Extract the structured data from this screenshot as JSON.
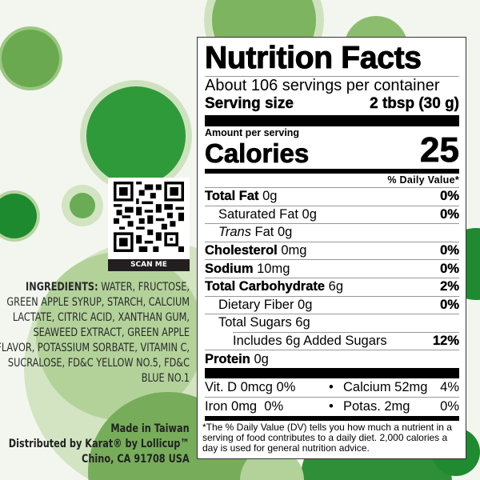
{
  "colors": {
    "background": "#f3f6ef",
    "dark_green": "#2a8f36",
    "mid_green": "#6fae55",
    "light_green": "#b9d6a3"
  },
  "qr": {
    "label": "SCAN ME"
  },
  "ingredients": {
    "label": "INGREDIENTS:",
    "text": "WATER, FRUCTOSE, GREEN APPLE SYRUP, STARCH, CALCIUM LACTATE, CITRIC ACID, XANTHAN GUM, SEAWEED EXTRACT, GREEN APPLE FLAVOR, POTASSIUM SORBATE, VITAMIN C, SUCRALOSE, FD&C YELLOW NO.5, FD&C BLUE NO.1"
  },
  "origin": {
    "made_in": "Made in Taiwan",
    "distributed": "Distributed by Karat® by Lollicup™",
    "address": "Chino, CA 91708 USA"
  },
  "nutrition": {
    "title": "Nutrition Facts",
    "servings": "About 106 servings per container",
    "serving_size_label": "Serving size",
    "serving_size_value": "2 tbsp (30 g)",
    "amount_per_serving": "Amount per serving",
    "calories_label": "Calories",
    "calories_value": "25",
    "dv_header": "% Daily Value*",
    "rows": [
      {
        "name": "Total Fat",
        "amount": "0g",
        "dv": "0%"
      },
      {
        "name": "Saturated Fat 0g",
        "dv": "0%"
      },
      {
        "name_italic": "Trans",
        "name": "Fat 0g"
      },
      {
        "name": "Cholesterol",
        "amount": "0mg",
        "dv": "0%"
      },
      {
        "name": "Sodium",
        "amount": "10mg",
        "dv": "0%"
      },
      {
        "name": "Total Carbohydrate",
        "amount": "6g",
        "dv": "2%"
      },
      {
        "name": "Dietary Fiber 0g",
        "dv": "0%"
      },
      {
        "name": "Total Sugars 6g"
      },
      {
        "name": "Includes 6g Added Sugars",
        "dv": "12%"
      },
      {
        "name": "Protein",
        "amount": "0g"
      }
    ],
    "micros": [
      {
        "left": "Vit. D 0mcg 0%",
        "right_name": "Calcium 52mg",
        "right_dv": "4%"
      },
      {
        "left": "Iron 0mg  0%",
        "right_name": "Potas. 2mg",
        "right_dv": "0%"
      }
    ],
    "bullet": "•",
    "footnote": "*The % Daily Value (DV) tells you how much a nutrient in a serving of food contributes to a daily diet. 2,000 calories a day is used for general nutrition advice."
  }
}
